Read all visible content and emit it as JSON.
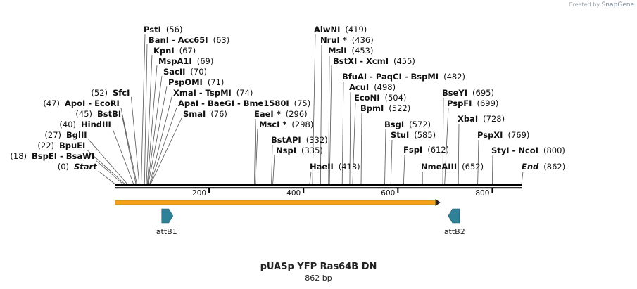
{
  "badge": {
    "prefix": "Created by",
    "brand": "SnapGene"
  },
  "title": "pUASp YFP Ras64B DN",
  "subtitle": "862 bp",
  "sequence_length": 862,
  "colors": {
    "line": "#000000",
    "feature_arrow": "#f4a21a",
    "feature_outline": "#d48a00",
    "att_site": "#2e8197"
  },
  "ruler": {
    "ticks": [
      200,
      400,
      600,
      800
    ]
  },
  "features": [
    {
      "name": "orf",
      "from": 1,
      "to": 690,
      "color": "#f4a21a"
    }
  ],
  "att_sites": [
    {
      "label": "attB1",
      "pos": 110,
      "direction": "right"
    },
    {
      "label": "attB2",
      "pos": 720,
      "direction": "left"
    }
  ],
  "sites": [
    {
      "names": [
        "Start"
      ],
      "pos": "(0)",
      "bp": 1,
      "side": "left",
      "italic": true
    },
    {
      "names": [
        "BspEI",
        "BsaWI"
      ],
      "pos": "(18)",
      "bp": 18,
      "side": "left"
    },
    {
      "names": [
        "BpuEI"
      ],
      "pos": "(22)",
      "bp": 22,
      "side": "left"
    },
    {
      "names": [
        "BglII"
      ],
      "pos": "(27)",
      "bp": 27,
      "side": "left"
    },
    {
      "names": [
        "HindIII"
      ],
      "pos": "(40)",
      "bp": 40,
      "side": "left"
    },
    {
      "names": [
        "BstBI"
      ],
      "pos": "(45)",
      "bp": 45,
      "side": "left"
    },
    {
      "names": [
        "ApoI",
        "EcoRI"
      ],
      "pos": "(47)",
      "bp": 47,
      "side": "left"
    },
    {
      "names": [
        "SfcI"
      ],
      "pos": "(52)",
      "bp": 52,
      "side": "left"
    },
    {
      "names": [
        "PstI"
      ],
      "pos": "(56)",
      "bp": 56,
      "side": "right"
    },
    {
      "names": [
        "BanI",
        "Acc65I"
      ],
      "pos": "(63)",
      "bp": 63,
      "side": "right"
    },
    {
      "names": [
        "KpnI"
      ],
      "pos": "(67)",
      "bp": 67,
      "side": "right"
    },
    {
      "names": [
        "MspA1I"
      ],
      "pos": "(69)",
      "bp": 69,
      "side": "right"
    },
    {
      "names": [
        "SacII"
      ],
      "pos": "(70)",
      "bp": 70,
      "side": "right"
    },
    {
      "names": [
        "PspOMI"
      ],
      "pos": "(71)",
      "bp": 71,
      "side": "right"
    },
    {
      "names": [
        "XmaI",
        "TspMI"
      ],
      "pos": "(74)",
      "bp": 74,
      "side": "right"
    },
    {
      "names": [
        "ApaI",
        "BaeGI",
        "Bme1580I"
      ],
      "pos": "(75)",
      "bp": 75,
      "side": "right"
    },
    {
      "names": [
        "SmaI"
      ],
      "pos": "(76)",
      "bp": 76,
      "side": "right"
    },
    {
      "names": [
        "EaeI *"
      ],
      "pos": "(296)",
      "bp": 296,
      "side": "right"
    },
    {
      "names": [
        "MscI *"
      ],
      "pos": "(298)",
      "bp": 298,
      "side": "right"
    },
    {
      "names": [
        "BstAPI"
      ],
      "pos": "(332)",
      "bp": 332,
      "side": "right"
    },
    {
      "names": [
        "NspI"
      ],
      "pos": "(335)",
      "bp": 335,
      "side": "right"
    },
    {
      "names": [
        "HaeII"
      ],
      "pos": "(413)",
      "bp": 413,
      "side": "right"
    },
    {
      "names": [
        "AlwNI"
      ],
      "pos": "(419)",
      "bp": 419,
      "side": "right"
    },
    {
      "names": [
        "NruI *"
      ],
      "pos": "(436)",
      "bp": 436,
      "side": "right"
    },
    {
      "names": [
        "MslI"
      ],
      "pos": "(453)",
      "bp": 453,
      "side": "right"
    },
    {
      "names": [
        "BstXI",
        "XcmI"
      ],
      "pos": "(455)",
      "bp": 455,
      "side": "right"
    },
    {
      "names": [
        "BfuAI",
        "PaqCI",
        "BspMI"
      ],
      "pos": "(482)",
      "bp": 482,
      "side": "right"
    },
    {
      "names": [
        "AcuI"
      ],
      "pos": "(498)",
      "bp": 498,
      "side": "right"
    },
    {
      "names": [
        "EcoNI"
      ],
      "pos": "(504)",
      "bp": 504,
      "side": "right"
    },
    {
      "names": [
        "BpmI"
      ],
      "pos": "(522)",
      "bp": 522,
      "side": "right"
    },
    {
      "names": [
        "BsgI"
      ],
      "pos": "(572)",
      "bp": 572,
      "side": "right"
    },
    {
      "names": [
        "StuI"
      ],
      "pos": "(585)",
      "bp": 585,
      "side": "right"
    },
    {
      "names": [
        "FspI"
      ],
      "pos": "(612)",
      "bp": 612,
      "side": "right"
    },
    {
      "names": [
        "NmeAIII"
      ],
      "pos": "(652)",
      "bp": 652,
      "side": "right"
    },
    {
      "names": [
        "BseYI"
      ],
      "pos": "(695)",
      "bp": 695,
      "side": "right"
    },
    {
      "names": [
        "PspFI"
      ],
      "pos": "(699)",
      "bp": 699,
      "side": "right"
    },
    {
      "names": [
        "XbaI"
      ],
      "pos": "(728)",
      "bp": 728,
      "side": "right"
    },
    {
      "names": [
        "PspXI"
      ],
      "pos": "(769)",
      "bp": 769,
      "side": "right"
    },
    {
      "names": [
        "StyI",
        "NcoI"
      ],
      "pos": "(800)",
      "bp": 800,
      "side": "right"
    },
    {
      "names": [
        "End"
      ],
      "pos": "(862)",
      "bp": 862,
      "side": "right",
      "italic": true
    }
  ]
}
